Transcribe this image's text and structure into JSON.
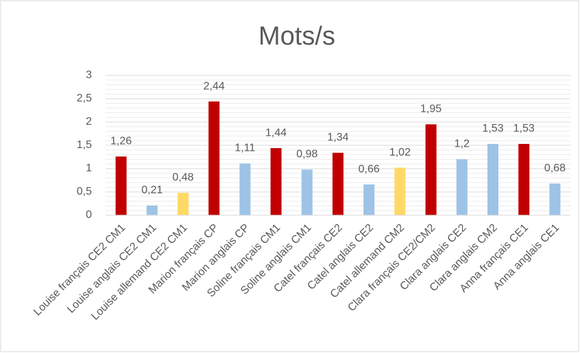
{
  "chart_data": {
    "type": "bar",
    "title": "Mots/s",
    "categories": [
      "Louise français CE2 CM1",
      "Louise anglais CE2 CM1",
      "Louise allemand CE2 CM1",
      "Marion français CP",
      "Marion anglais CP",
      "Soline français CM1",
      "Soline anglais CM1",
      "Catel français CE2",
      "Catel anglais CE2",
      "Catel allemand CM2",
      "Clara français CE2/CM2",
      "Clara anglais CE2",
      "Clara anglais CM2",
      "Anna français CE1",
      "Anna anglais CE1"
    ],
    "values": [
      1.26,
      0.21,
      0.48,
      2.44,
      1.11,
      1.44,
      0.98,
      1.34,
      0.66,
      1.02,
      1.95,
      1.2,
      1.53,
      1.53,
      0.68
    ],
    "value_labels": [
      "1,26",
      "0,21",
      "0,48",
      "2,44",
      "1,11",
      "1,44",
      "0,98",
      "1,34",
      "0,66",
      "1,02",
      "1,95",
      "1,2",
      "1,53",
      "1,53",
      "0,68"
    ],
    "colors": [
      "#c00000",
      "#9dc3e6",
      "#ffd966",
      "#c00000",
      "#9dc3e6",
      "#c00000",
      "#9dc3e6",
      "#c00000",
      "#9dc3e6",
      "#ffd966",
      "#c00000",
      "#9dc3e6",
      "#9dc3e6",
      "#c00000",
      "#9dc3e6"
    ],
    "ylim": [
      0,
      3
    ],
    "yticks": [
      0,
      {
        "value": 0.5,
        "label": "0,5"
      },
      1,
      {
        "value": 1.5,
        "label": "1,5"
      },
      2,
      {
        "value": 2.5,
        "label": "2,5"
      },
      3
    ],
    "grid": true,
    "minor_grid": true
  }
}
